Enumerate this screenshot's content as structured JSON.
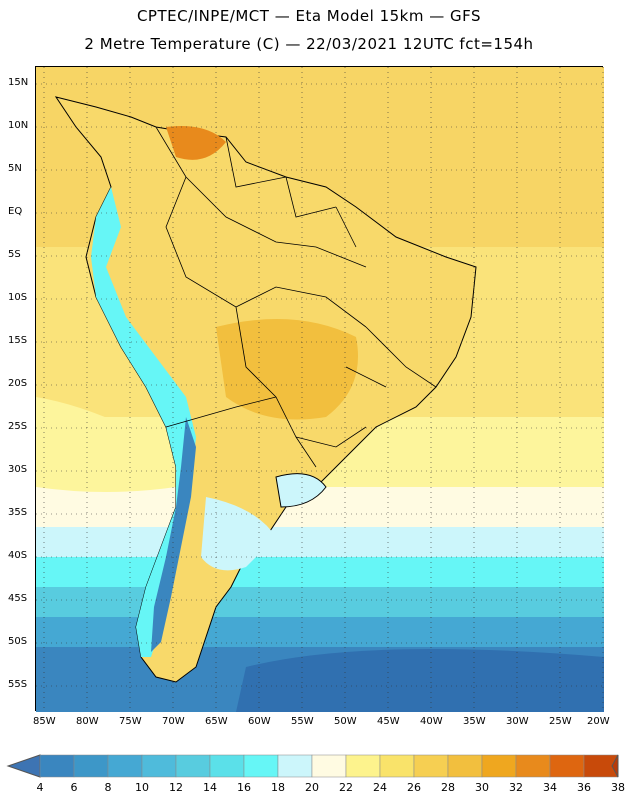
{
  "header": {
    "line1": "CPTEC/INPE/MCT —  Eta Model 15km — GFS",
    "line2": "2 Metre Temperature (C) — 22/03/2021 12UTC fct=154h"
  },
  "map": {
    "lat_labels": [
      "15N",
      "10N",
      "5N",
      "EQ",
      "5S",
      "10S",
      "15S",
      "20S",
      "25S",
      "30S",
      "35S",
      "40S",
      "45S",
      "50S",
      "55S"
    ],
    "lon_labels": [
      "85W",
      "80W",
      "75W",
      "70W",
      "65W",
      "60W",
      "55W",
      "50W",
      "45W",
      "40W",
      "35W",
      "30W",
      "25W",
      "20W"
    ]
  },
  "colorbar": {
    "labels": [
      "4",
      "6",
      "8",
      "10",
      "12",
      "14",
      "16",
      "18",
      "20",
      "22",
      "24",
      "26",
      "28",
      "30",
      "32",
      "34",
      "36",
      "38"
    ],
    "colors": [
      "#3d74b3",
      "#3a86bf",
      "#3d97c8",
      "#45a8d3",
      "#4fbbdb",
      "#58ccdf",
      "#5be0e9",
      "#66f6f6",
      "#ccf6fb",
      "#fffbe2",
      "#fdf38d",
      "#f9e36a",
      "#f6cf52",
      "#f2bf3e",
      "#efa71f",
      "#e88a1c",
      "#de6610",
      "#c84a0a",
      "#b83a08"
    ]
  }
}
